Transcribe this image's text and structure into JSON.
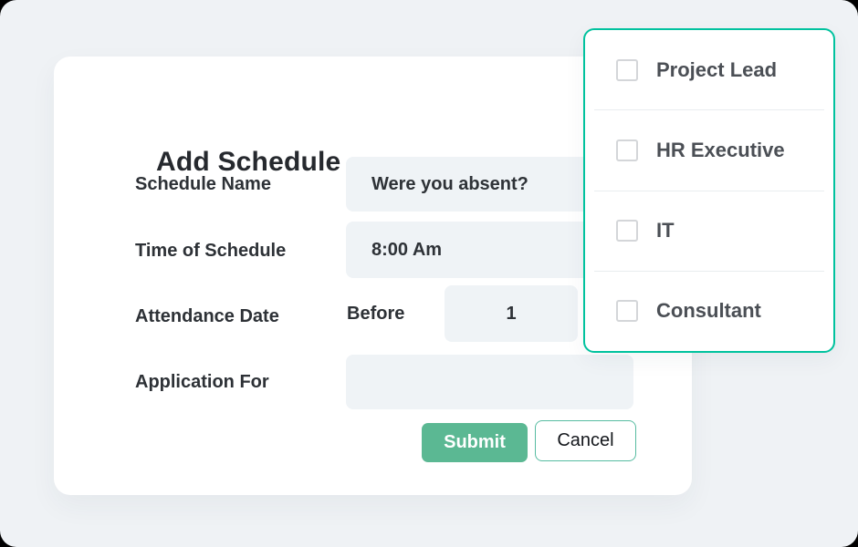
{
  "dialog": {
    "title": "Add Schedule",
    "fields": [
      {
        "label": "Schedule Name",
        "value": "Were you absent?"
      },
      {
        "label": "Time of Schedule",
        "value": "8:00 Am"
      },
      {
        "label": "Attendance Date",
        "prefix": "Before",
        "value": "1"
      },
      {
        "label": "Application For",
        "value": ""
      }
    ],
    "buttons": {
      "submit": "Submit",
      "cancel": "Cancel"
    }
  },
  "dropdown": {
    "items": [
      {
        "label": "Project Lead",
        "checked": false
      },
      {
        "label": "HR Executive",
        "checked": false
      },
      {
        "label": "IT",
        "checked": false
      },
      {
        "label": "Consultant",
        "checked": false
      }
    ]
  },
  "colors": {
    "page_background": "#eff2f5",
    "card_background": "#ffffff",
    "field_background": "#eff3f6",
    "accent_teal": "#00c29e",
    "submit_green": "#5bb893",
    "cancel_border": "#57bca1",
    "text_dark": "#2d3136",
    "dropdown_text": "#4b4f55"
  }
}
